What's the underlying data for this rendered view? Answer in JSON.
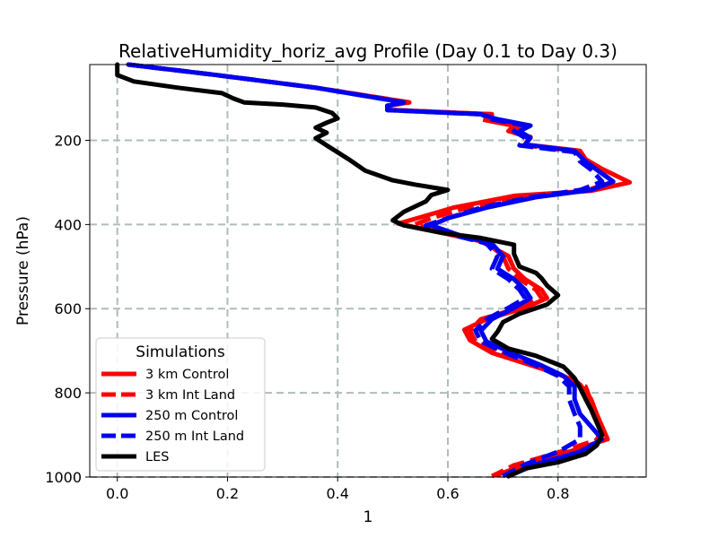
{
  "chart_data": {
    "type": "line",
    "title": "RelativeHumidity_horiz_avg Profile (Day 0.1 to Day 0.3)",
    "xlabel": "1",
    "ylabel": "Pressure (hPa)",
    "xlim": [
      -0.05,
      0.96
    ],
    "ylim": [
      1000,
      20
    ],
    "y_inverted": true,
    "xticks": [
      0.0,
      0.2,
      0.4,
      0.6,
      0.8
    ],
    "xtick_labels": [
      "0.0",
      "0.2",
      "0.4",
      "0.6",
      "0.8"
    ],
    "yticks": [
      200,
      400,
      600,
      800,
      1000
    ],
    "ytick_labels": [
      "200",
      "400",
      "600",
      "800",
      "1000"
    ],
    "grid": true,
    "legend": {
      "title": "Simulations",
      "location": "lower-left"
    },
    "series": [
      {
        "name": "3 km Control",
        "color": "#ff0000",
        "dash": "solid",
        "points": [
          [
            0.02,
            20
          ],
          [
            0.18,
            45
          ],
          [
            0.36,
            75
          ],
          [
            0.53,
            110
          ],
          [
            0.49,
            118
          ],
          [
            0.5,
            128
          ],
          [
            0.68,
            138
          ],
          [
            0.67,
            152
          ],
          [
            0.73,
            168
          ],
          [
            0.71,
            178
          ],
          [
            0.75,
            192
          ],
          [
            0.74,
            210
          ],
          [
            0.84,
            225
          ],
          [
            0.85,
            245
          ],
          [
            0.88,
            268
          ],
          [
            0.93,
            300
          ],
          [
            0.86,
            320
          ],
          [
            0.72,
            332
          ],
          [
            0.61,
            360
          ],
          [
            0.55,
            383
          ],
          [
            0.51,
            398
          ],
          [
            0.59,
            420
          ],
          [
            0.66,
            440
          ],
          [
            0.71,
            475
          ],
          [
            0.72,
            505
          ],
          [
            0.74,
            530
          ],
          [
            0.77,
            555
          ],
          [
            0.78,
            575
          ],
          [
            0.74,
            598
          ],
          [
            0.67,
            625
          ],
          [
            0.63,
            650
          ],
          [
            0.64,
            675
          ],
          [
            0.68,
            705
          ],
          [
            0.74,
            730
          ],
          [
            0.8,
            755
          ],
          [
            0.84,
            780
          ],
          [
            0.86,
            815
          ],
          [
            0.87,
            850
          ],
          [
            0.88,
            880
          ],
          [
            0.89,
            910
          ],
          [
            0.82,
            940
          ],
          [
            0.74,
            970
          ],
          [
            0.69,
            995
          ]
        ]
      },
      {
        "name": "3 km Int Land",
        "color": "#ff0000",
        "dash": "dashed",
        "points": [
          [
            0.02,
            20
          ],
          [
            0.18,
            45
          ],
          [
            0.36,
            75
          ],
          [
            0.53,
            110
          ],
          [
            0.49,
            118
          ],
          [
            0.5,
            128
          ],
          [
            0.68,
            138
          ],
          [
            0.66,
            150
          ],
          [
            0.72,
            165
          ],
          [
            0.71,
            178
          ],
          [
            0.75,
            194
          ],
          [
            0.74,
            212
          ],
          [
            0.84,
            228
          ],
          [
            0.85,
            248
          ],
          [
            0.87,
            268
          ],
          [
            0.9,
            298
          ],
          [
            0.85,
            320
          ],
          [
            0.74,
            335
          ],
          [
            0.63,
            362
          ],
          [
            0.57,
            385
          ],
          [
            0.54,
            400
          ],
          [
            0.6,
            422
          ],
          [
            0.67,
            442
          ],
          [
            0.7,
            475
          ],
          [
            0.71,
            505
          ],
          [
            0.73,
            530
          ],
          [
            0.76,
            555
          ],
          [
            0.77,
            575
          ],
          [
            0.73,
            598
          ],
          [
            0.66,
            625
          ],
          [
            0.64,
            652
          ],
          [
            0.65,
            678
          ],
          [
            0.7,
            708
          ],
          [
            0.76,
            735
          ],
          [
            0.81,
            760
          ],
          [
            0.85,
            785
          ],
          [
            0.86,
            820
          ],
          [
            0.87,
            855
          ],
          [
            0.88,
            885
          ],
          [
            0.87,
            912
          ],
          [
            0.8,
            942
          ],
          [
            0.72,
            972
          ],
          [
            0.68,
            998
          ]
        ]
      },
      {
        "name": "250 m Control",
        "color": "#0000ee",
        "dash": "solid",
        "points": [
          [
            0.02,
            20
          ],
          [
            0.18,
            45
          ],
          [
            0.36,
            75
          ],
          [
            0.52,
            110
          ],
          [
            0.49,
            118
          ],
          [
            0.49,
            128
          ],
          [
            0.66,
            138
          ],
          [
            0.69,
            150
          ],
          [
            0.75,
            165
          ],
          [
            0.73,
            178
          ],
          [
            0.75,
            194
          ],
          [
            0.74,
            210
          ],
          [
            0.83,
            225
          ],
          [
            0.85,
            250
          ],
          [
            0.87,
            270
          ],
          [
            0.9,
            298
          ],
          [
            0.86,
            318
          ],
          [
            0.76,
            335
          ],
          [
            0.67,
            360
          ],
          [
            0.6,
            385
          ],
          [
            0.57,
            402
          ],
          [
            0.62,
            425
          ],
          [
            0.68,
            445
          ],
          [
            0.7,
            475
          ],
          [
            0.69,
            505
          ],
          [
            0.72,
            530
          ],
          [
            0.74,
            555
          ],
          [
            0.75,
            575
          ],
          [
            0.72,
            598
          ],
          [
            0.68,
            625
          ],
          [
            0.66,
            652
          ],
          [
            0.67,
            678
          ],
          [
            0.72,
            708
          ],
          [
            0.77,
            735
          ],
          [
            0.81,
            760
          ],
          [
            0.83,
            785
          ],
          [
            0.83,
            815
          ],
          [
            0.84,
            850
          ],
          [
            0.86,
            880
          ],
          [
            0.88,
            910
          ],
          [
            0.84,
            940
          ],
          [
            0.76,
            970
          ],
          [
            0.71,
            998
          ]
        ]
      },
      {
        "name": "250 m Int Land",
        "color": "#0000ee",
        "dash": "dashed",
        "points": [
          [
            0.02,
            20
          ],
          [
            0.18,
            45
          ],
          [
            0.36,
            75
          ],
          [
            0.52,
            110
          ],
          [
            0.49,
            118
          ],
          [
            0.49,
            128
          ],
          [
            0.66,
            138
          ],
          [
            0.68,
            150
          ],
          [
            0.74,
            165
          ],
          [
            0.72,
            178
          ],
          [
            0.74,
            194
          ],
          [
            0.73,
            212
          ],
          [
            0.83,
            228
          ],
          [
            0.84,
            250
          ],
          [
            0.86,
            270
          ],
          [
            0.88,
            298
          ],
          [
            0.84,
            318
          ],
          [
            0.75,
            335
          ],
          [
            0.66,
            360
          ],
          [
            0.6,
            385
          ],
          [
            0.56,
            402
          ],
          [
            0.61,
            425
          ],
          [
            0.67,
            445
          ],
          [
            0.69,
            475
          ],
          [
            0.68,
            505
          ],
          [
            0.71,
            530
          ],
          [
            0.73,
            555
          ],
          [
            0.74,
            575
          ],
          [
            0.71,
            598
          ],
          [
            0.67,
            625
          ],
          [
            0.65,
            652
          ],
          [
            0.66,
            678
          ],
          [
            0.71,
            708
          ],
          [
            0.76,
            735
          ],
          [
            0.8,
            760
          ],
          [
            0.82,
            785
          ],
          [
            0.82,
            815
          ],
          [
            0.83,
            850
          ],
          [
            0.84,
            880
          ],
          [
            0.84,
            910
          ],
          [
            0.8,
            940
          ],
          [
            0.74,
            970
          ],
          [
            0.7,
            998
          ]
        ]
      },
      {
        "name": "LES",
        "color": "#000000",
        "dash": "solid",
        "points": [
          [
            0.0,
            20
          ],
          [
            0.0,
            45
          ],
          [
            0.03,
            60
          ],
          [
            0.11,
            75
          ],
          [
            0.19,
            88
          ],
          [
            0.21,
            100
          ],
          [
            0.23,
            110
          ],
          [
            0.3,
            115
          ],
          [
            0.36,
            122
          ],
          [
            0.39,
            135
          ],
          [
            0.4,
            148
          ],
          [
            0.38,
            158
          ],
          [
            0.36,
            170
          ],
          [
            0.38,
            182
          ],
          [
            0.36,
            195
          ],
          [
            0.38,
            212
          ],
          [
            0.42,
            245
          ],
          [
            0.45,
            272
          ],
          [
            0.5,
            295
          ],
          [
            0.54,
            305
          ],
          [
            0.6,
            318
          ],
          [
            0.57,
            330
          ],
          [
            0.56,
            345
          ],
          [
            0.52,
            370
          ],
          [
            0.5,
            390
          ],
          [
            0.52,
            402
          ],
          [
            0.59,
            420
          ],
          [
            0.66,
            432
          ],
          [
            0.72,
            448
          ],
          [
            0.72,
            470
          ],
          [
            0.73,
            500
          ],
          [
            0.76,
            515
          ],
          [
            0.77,
            528
          ],
          [
            0.78,
            545
          ],
          [
            0.8,
            568
          ],
          [
            0.78,
            590
          ],
          [
            0.73,
            612
          ],
          [
            0.7,
            632
          ],
          [
            0.69,
            655
          ],
          [
            0.68,
            672
          ],
          [
            0.71,
            695
          ],
          [
            0.76,
            712
          ],
          [
            0.81,
            738
          ],
          [
            0.83,
            765
          ],
          [
            0.84,
            788
          ],
          [
            0.85,
            815
          ],
          [
            0.86,
            840
          ],
          [
            0.87,
            870
          ],
          [
            0.88,
            900
          ],
          [
            0.87,
            925
          ],
          [
            0.85,
            945
          ],
          [
            0.8,
            965
          ],
          [
            0.74,
            980
          ],
          [
            0.71,
            998
          ]
        ]
      }
    ]
  }
}
